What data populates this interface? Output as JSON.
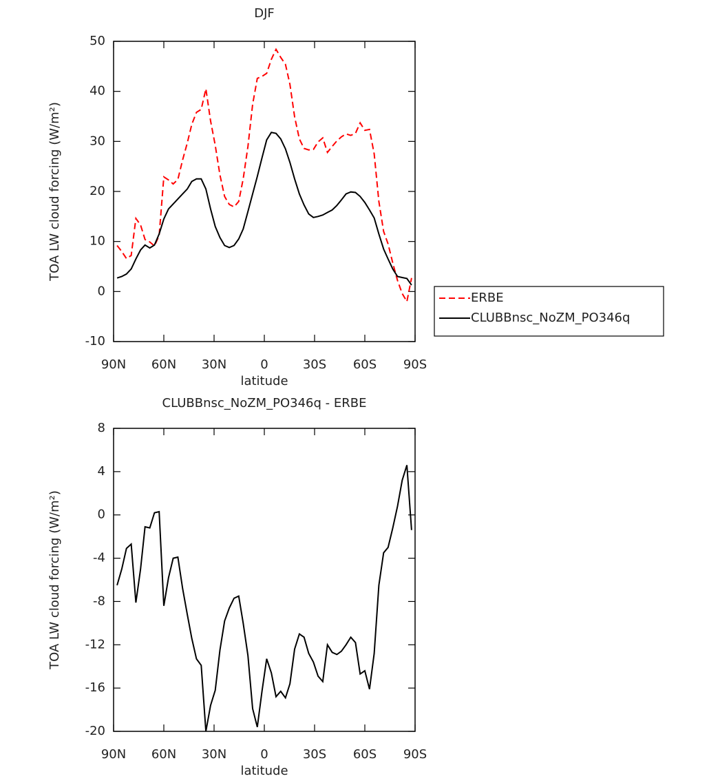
{
  "chart_data": [
    {
      "type": "line",
      "title": "DJF",
      "x_label": "latitude",
      "y_label": "TOA LW cloud forcing (W/m²)",
      "x": [
        87.9,
        85.1,
        82.3,
        79.5,
        76.7,
        73.9,
        71.2,
        68.4,
        65.6,
        62.8,
        60.0,
        57.2,
        54.4,
        51.6,
        48.8,
        46.0,
        43.3,
        40.5,
        37.7,
        34.9,
        32.1,
        29.3,
        26.5,
        23.7,
        20.9,
        18.1,
        15.3,
        12.6,
        9.8,
        7.0,
        4.2,
        1.4,
        -1.4,
        -4.2,
        -7.0,
        -9.8,
        -12.6,
        -15.3,
        -18.1,
        -20.9,
        -23.7,
        -26.5,
        -29.3,
        -32.1,
        -34.9,
        -37.7,
        -40.5,
        -43.3,
        -46.0,
        -48.8,
        -51.6,
        -54.4,
        -57.2,
        -60.0,
        -62.8,
        -65.6,
        -68.4,
        -71.2,
        -73.9,
        -76.7,
        -79.5,
        -82.3,
        -85.1,
        -87.9
      ],
      "series": [
        {
          "name": "ERBE",
          "color": "#ff0000",
          "style": "dashed",
          "values": [
            9.2,
            8,
            6.6,
            7.2,
            14.6,
            13.3,
            10.4,
            9.9,
            9.1,
            11.2,
            22.9,
            22.3,
            21.5,
            22.4,
            26.3,
            29.7,
            33.4,
            35.8,
            36.4,
            40.5,
            34.1,
            29.2,
            23.3,
            19,
            17.4,
            16.9,
            18,
            22.5,
            29,
            37.4,
            42.6,
            43,
            43.6,
            46.4,
            48.4,
            46.8,
            45.4,
            41.4,
            34.9,
            30.5,
            28.6,
            28.3,
            28.4,
            29.9,
            30.7,
            27.8,
            29,
            30.1,
            30.9,
            31.5,
            31.2,
            31.6,
            33.7,
            32.2,
            32.4,
            27.5,
            18,
            12,
            9.5,
            5.7,
            2.2,
            -0.4,
            -2,
            2.7
          ]
        },
        {
          "name": "CLUBBnsc_NoZM_PO346q",
          "color": "#000000",
          "style": "solid",
          "values": [
            2.7,
            3,
            3.5,
            4.5,
            6.5,
            8.3,
            9.3,
            8.7,
            9.3,
            11.5,
            14.5,
            16.5,
            17.5,
            18.5,
            19.5,
            20.5,
            22,
            22.5,
            22.5,
            20.5,
            16.5,
            13,
            10.8,
            9.2,
            8.8,
            9.2,
            10.5,
            12.5,
            16,
            19.5,
            23,
            26.7,
            30.3,
            31.8,
            31.6,
            30.5,
            28.5,
            25.8,
            22.5,
            19.5,
            17.3,
            15.5,
            14.8,
            15,
            15.3,
            15.8,
            16.3,
            17.2,
            18.3,
            19.5,
            19.9,
            19.8,
            19,
            17.8,
            16.3,
            14.7,
            11.5,
            8.5,
            6.5,
            4.5,
            3,
            2.8,
            2.6,
            1.3
          ]
        }
      ],
      "xlim": [
        90,
        -90
      ],
      "xticks": [
        {
          "value": 90,
          "label": "90N"
        },
        {
          "value": 60,
          "label": "60N"
        },
        {
          "value": 30,
          "label": "30N"
        },
        0,
        {
          "value": -30,
          "label": "30S"
        },
        {
          "value": -60,
          "label": "60S"
        },
        {
          "value": -90,
          "label": "90S"
        }
      ],
      "ylim": [
        -10,
        50
      ],
      "yticks": [
        -10,
        0,
        10,
        20,
        30,
        40,
        50
      ],
      "legend": "right"
    },
    {
      "type": "line",
      "title": "CLUBBnsc_NoZM_PO346q - ERBE",
      "x_label": "latitude",
      "y_label": "TOA LW cloud forcing (W/m²)",
      "x": [
        87.9,
        85.1,
        82.3,
        79.5,
        76.7,
        73.9,
        71.2,
        68.4,
        65.6,
        62.8,
        60.0,
        57.2,
        54.4,
        51.6,
        48.8,
        46.0,
        43.3,
        40.5,
        37.7,
        34.9,
        32.1,
        29.3,
        26.5,
        23.7,
        20.9,
        18.1,
        15.3,
        12.6,
        9.8,
        7.0,
        4.2,
        1.4,
        -1.4,
        -4.2,
        -7.0,
        -9.8,
        -12.6,
        -15.3,
        -18.1,
        -20.9,
        -23.7,
        -26.5,
        -29.3,
        -32.1,
        -34.9,
        -37.7,
        -40.5,
        -43.3,
        -46.0,
        -48.8,
        -51.6,
        -54.4,
        -57.2,
        -60.0,
        -62.8,
        -65.6,
        -68.4,
        -71.2,
        -73.9,
        -76.7,
        -79.5,
        -82.3,
        -85.1,
        -87.9
      ],
      "color": "#000000",
      "values": [
        -6.5,
        -5,
        -3.1,
        -2.7,
        -8.1,
        -5,
        -1.1,
        -1.2,
        0.2,
        0.3,
        -8.4,
        -5.8,
        -4,
        -3.9,
        -6.8,
        -9.2,
        -11.4,
        -13.3,
        -13.9,
        -20,
        -17.6,
        -16.2,
        -12.5,
        -9.8,
        -8.6,
        -7.7,
        -7.5,
        -10,
        -13,
        -17.9,
        -19.6,
        -16.3,
        -13.3,
        -14.6,
        -16.8,
        -16.3,
        -16.9,
        -15.6,
        -12.4,
        -11,
        -11.3,
        -12.8,
        -13.6,
        -14.9,
        -15.4,
        -12,
        -12.7,
        -12.9,
        -12.6,
        -12,
        -11.3,
        -11.8,
        -14.7,
        -14.4,
        -16.1,
        -12.8,
        -6.5,
        -3.5,
        -3,
        -1.2,
        0.8,
        3.2,
        4.6,
        -1.4
      ],
      "xlim": [
        90,
        -90
      ],
      "xticks": [
        {
          "value": 90,
          "label": "90N"
        },
        {
          "value": 60,
          "label": "60N"
        },
        {
          "value": 30,
          "label": "30N"
        },
        0,
        {
          "value": -30,
          "label": "30S"
        },
        {
          "value": -60,
          "label": "60S"
        },
        {
          "value": -90,
          "label": "90S"
        }
      ],
      "ylim": [
        -20,
        8
      ],
      "yticks": [
        -20,
        -16,
        -12,
        -8,
        -4,
        0,
        4,
        8
      ]
    }
  ]
}
